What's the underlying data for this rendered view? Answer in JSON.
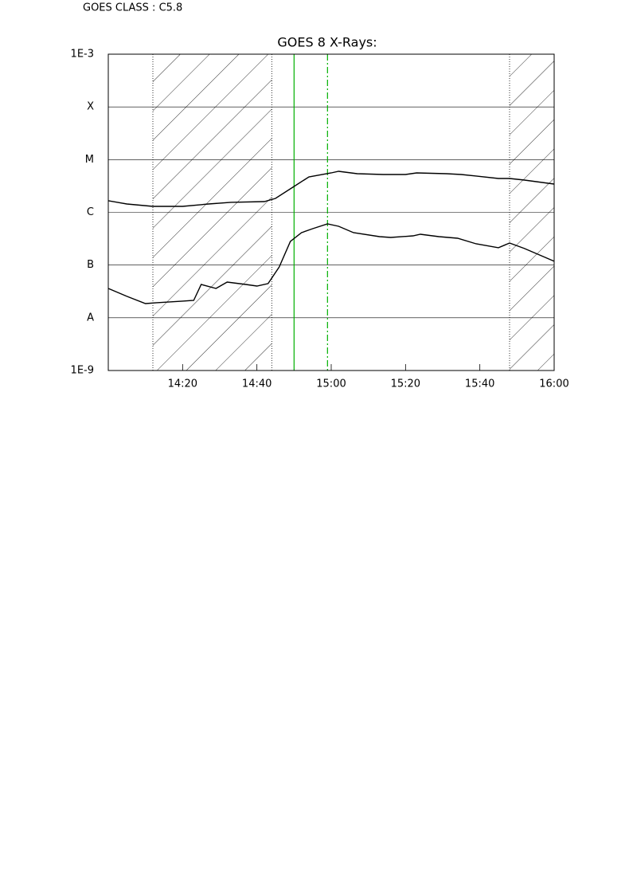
{
  "chart_data": {
    "type": "line",
    "annotation": "GOES CLASS : C5.8",
    "title": "GOES 8 X-Rays:",
    "log_y": true,
    "grid": true,
    "xlim": [
      "14:00",
      "16:00"
    ],
    "xticks": [
      "14:20",
      "14:40",
      "15:00",
      "15:20",
      "15:40",
      "16:00"
    ],
    "ylim": [
      1e-09,
      0.001
    ],
    "yticks": [
      {
        "value": 1e-09,
        "label": "1E-9"
      },
      {
        "value": 1e-08,
        "label": "A"
      },
      {
        "value": 1e-07,
        "label": "B"
      },
      {
        "value": 1e-06,
        "label": "C"
      },
      {
        "value": 1e-05,
        "label": "M"
      },
      {
        "value": 0.0001,
        "label": "X"
      },
      {
        "value": 0.001,
        "label": "1E-3"
      }
    ],
    "shaded": [
      [
        "14:12",
        "14:44"
      ],
      [
        "15:48",
        "16:00"
      ]
    ],
    "vlines": [
      {
        "x": "14:50",
        "color": "#00b000",
        "dash": "none"
      },
      {
        "x": "14:59",
        "color": "#00b000",
        "dash": "8 3 2 3"
      }
    ],
    "series": [
      {
        "color": "#000000",
        "x": [
          "14:00",
          "14:05",
          "14:12",
          "14:20",
          "14:27",
          "14:33",
          "14:42",
          "14:45",
          "14:50",
          "14:54",
          "15:00",
          "15:02",
          "15:07",
          "15:14",
          "15:20",
          "15:23",
          "15:31",
          "15:35",
          "15:39",
          "15:45",
          "15:48",
          "15:52",
          "16:00"
        ],
        "values": [
          1.66e-06,
          1.44e-06,
          1.3e-06,
          1.3e-06,
          1.44e-06,
          1.55e-06,
          1.6e-06,
          1.84e-06,
          3.1e-06,
          4.71e-06,
          5.6e-06,
          6e-06,
          5.41e-06,
          5.22e-06,
          5.22e-06,
          5.6e-06,
          5.41e-06,
          5.22e-06,
          4.88e-06,
          4.39e-06,
          4.39e-06,
          4.09e-06,
          3.44e-06
        ]
      },
      {
        "color": "#000000",
        "x": [
          "14:00",
          "14:05",
          "14:10",
          "14:13",
          "14:20",
          "14:23",
          "14:25",
          "14:29",
          "14:32",
          "14:37",
          "14:40",
          "14:43",
          "14:46",
          "14:49",
          "14:52",
          "14:55",
          "14:59",
          "15:02",
          "15:06",
          "15:13",
          "15:16",
          "15:22",
          "15:24",
          "15:29",
          "15:34",
          "15:39",
          "15:45",
          "15:48",
          "15:52",
          "16:00"
        ],
        "values": [
          3.6e-08,
          2.55e-08,
          1.86e-08,
          1.93e-08,
          2.07e-08,
          2.14e-08,
          4.29e-08,
          3.6e-08,
          4.76e-08,
          4.29e-08,
          4e-08,
          4.45e-08,
          9.23e-08,
          2.81e-07,
          4.12e-07,
          4.9e-07,
          6.04e-07,
          5.44e-07,
          4.12e-07,
          3.46e-07,
          3.34e-07,
          3.58e-07,
          3.84e-07,
          3.46e-07,
          3.23e-07,
          2.53e-07,
          2.13e-07,
          2.62e-07,
          2.06e-07,
          1.18e-07
        ]
      }
    ]
  }
}
